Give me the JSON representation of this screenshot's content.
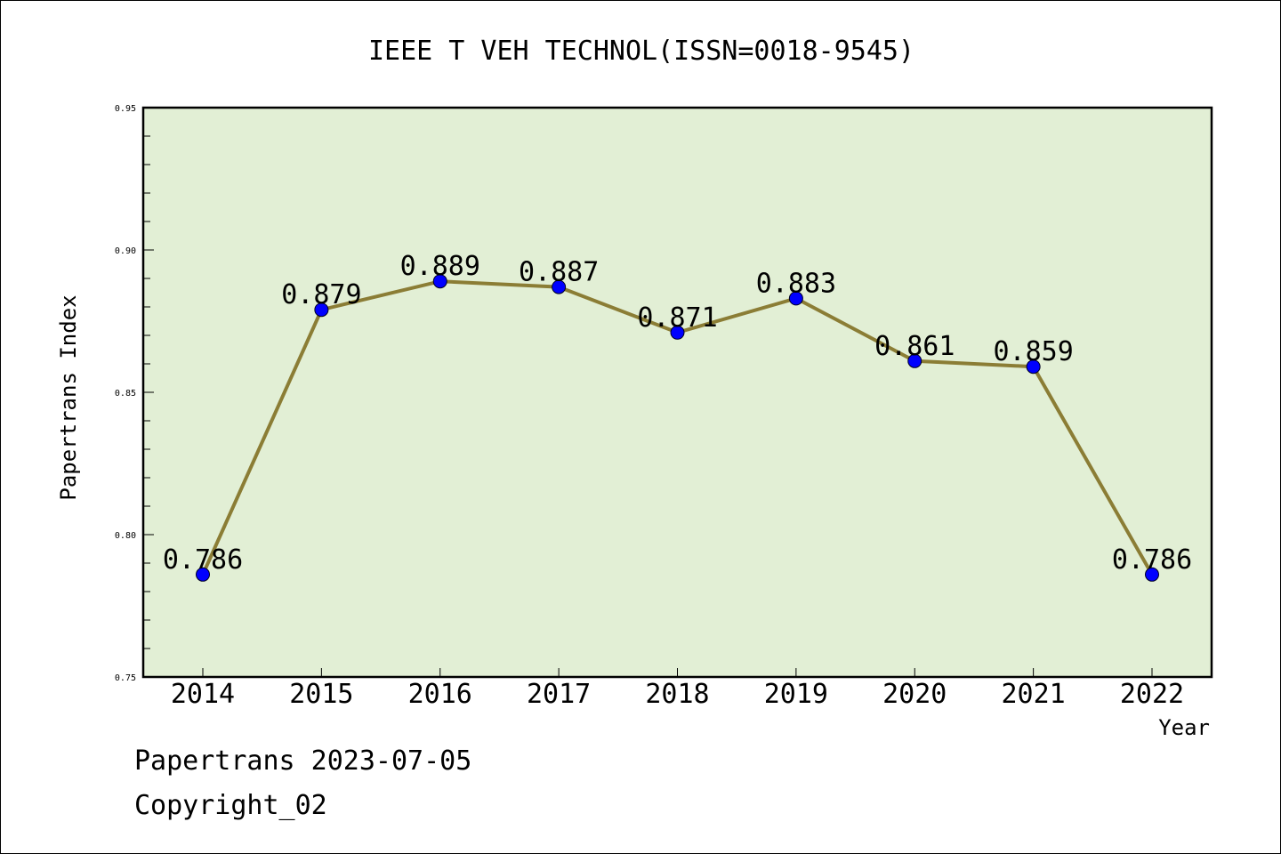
{
  "chart_data": {
    "type": "line",
    "title": "IEEE T VEH TECHNOL(ISSN=0018-9545)",
    "xlabel": "Year",
    "ylabel": "Papertrans Index",
    "categories": [
      "2014",
      "2015",
      "2016",
      "2017",
      "2018",
      "2019",
      "2020",
      "2021",
      "2022"
    ],
    "series": [
      {
        "values": [
          0.786,
          0.879,
          0.889,
          0.887,
          0.871,
          0.883,
          0.861,
          0.859,
          0.786
        ],
        "data_labels": [
          "0.786",
          "0.879",
          "0.889",
          "0.887",
          "0.871",
          "0.883",
          "0.861",
          "0.859",
          "0.786"
        ]
      }
    ],
    "ylim": [
      0.75,
      0.95
    ],
    "yticks": [
      "0.75",
      "0.80",
      "0.85",
      "0.90",
      "0.95"
    ],
    "grid": false,
    "colors": {
      "plot_background": "#e2efd5",
      "line": "#8b7d35",
      "marker": "#0000ff"
    }
  },
  "footer": {
    "date_line": "Papertrans 2023-07-05",
    "copyright": "Copyright_02"
  }
}
